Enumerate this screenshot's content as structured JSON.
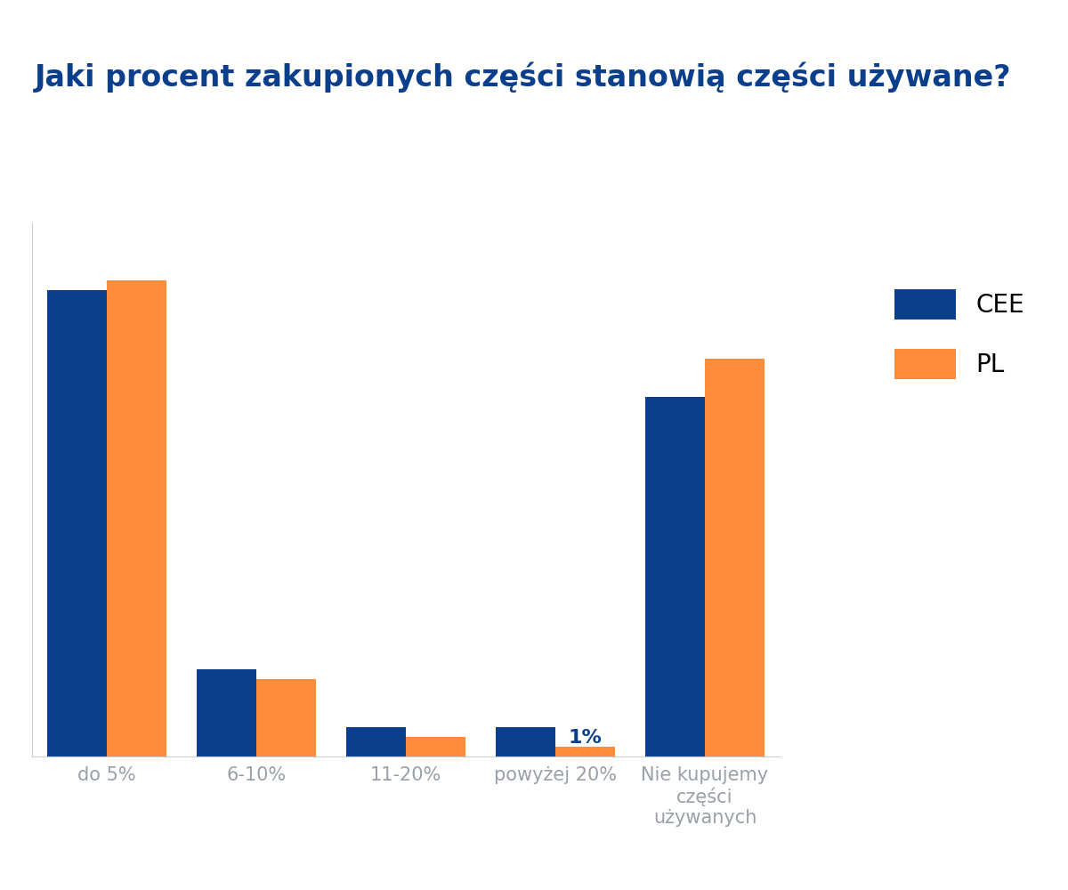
{
  "chart_data": {
    "type": "bar",
    "title": "Jaki procent zakupionych części stanowią części używane?",
    "categories": [
      "do 5%",
      "6-10%",
      "11-20%",
      "powyżej 20%",
      "Nie kupujemy części używanych"
    ],
    "series": [
      {
        "name": "CEE",
        "color": "#0b3f8c",
        "values": [
          48,
          9,
          3,
          3,
          37
        ]
      },
      {
        "name": "PL",
        "color": "#ff8c3b",
        "values": [
          49,
          8,
          2,
          1,
          41
        ],
        "value_labels": [
          null,
          null,
          null,
          "1%",
          null
        ]
      }
    ],
    "ylim": [
      0,
      55
    ],
    "data_labels": true,
    "tick_labels": "x",
    "legend": "upper right",
    "grid": false
  }
}
